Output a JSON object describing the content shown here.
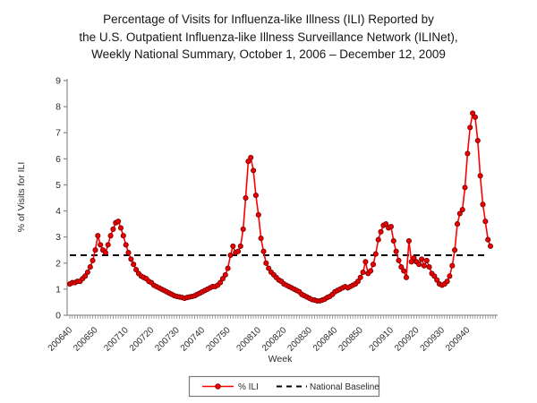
{
  "title": {
    "line1": "Percentage of Visits for Influenza-like Illness (ILI) Reported by",
    "line2": "the U.S. Outpatient Influenza-like Illness Surveillance Network (ILINet),",
    "line3": "Weekly National Summary, October 1, 2006 – December 12, 2009"
  },
  "legend": {
    "ili_label": "% ILI",
    "baseline_label": "National Baseline"
  },
  "colors": {
    "ili_line": "#ff0000",
    "marker_fill": "#f00000",
    "marker_edge": "#7a0000",
    "baseline_line": "#000000",
    "axis": "#8c8c8c",
    "text": "#2b2b2b"
  },
  "chart_data": {
    "type": "line",
    "title": "Percentage of Visits for Influenza-like Illness (ILI) Reported by the U.S. Outpatient Influenza-like Illness Surveillance Network (ILINet), Weekly National Summary, October 1, 2006 – December 12, 2009",
    "xlabel": "Week",
    "ylabel": "% of Visits for ILI",
    "ylim": [
      0,
      9
    ],
    "yticks": [
      0,
      1,
      2,
      3,
      4,
      5,
      6,
      7,
      8,
      9
    ],
    "grid": false,
    "legend_position": "bottom",
    "x_start": "200640",
    "x_end": "200949",
    "xticks": [
      {
        "index": 0,
        "label": "200640"
      },
      {
        "index": 10,
        "label": "200650"
      },
      {
        "index": 22,
        "label": "200710"
      },
      {
        "index": 32,
        "label": "200720"
      },
      {
        "index": 42,
        "label": "200730"
      },
      {
        "index": 52,
        "label": "200740"
      },
      {
        "index": 62,
        "label": "200750"
      },
      {
        "index": 74,
        "label": "200810"
      },
      {
        "index": 84,
        "label": "200820"
      },
      {
        "index": 94,
        "label": "200830"
      },
      {
        "index": 104,
        "label": "200840"
      },
      {
        "index": 114,
        "label": "200850"
      },
      {
        "index": 126,
        "label": "200910"
      },
      {
        "index": 136,
        "label": "200920"
      },
      {
        "index": 146,
        "label": "200930"
      },
      {
        "index": 156,
        "label": "200940"
      }
    ],
    "series": [
      {
        "name": "% ILI",
        "style": "line-with-markers",
        "values": [
          1.2,
          1.25,
          1.25,
          1.3,
          1.3,
          1.4,
          1.5,
          1.65,
          1.85,
          2.1,
          2.5,
          3.05,
          2.7,
          2.5,
          2.4,
          2.7,
          3.05,
          3.3,
          3.55,
          3.6,
          3.35,
          3.05,
          2.7,
          2.4,
          2.15,
          1.95,
          1.75,
          1.6,
          1.5,
          1.45,
          1.4,
          1.3,
          1.25,
          1.15,
          1.1,
          1.05,
          1.0,
          0.95,
          0.9,
          0.85,
          0.8,
          0.75,
          0.72,
          0.7,
          0.68,
          0.65,
          0.68,
          0.7,
          0.72,
          0.75,
          0.8,
          0.85,
          0.9,
          0.95,
          1.0,
          1.05,
          1.1,
          1.1,
          1.15,
          1.25,
          1.4,
          1.55,
          1.8,
          2.3,
          2.65,
          2.4,
          2.45,
          2.65,
          3.3,
          4.5,
          5.9,
          6.05,
          5.55,
          4.6,
          3.85,
          2.95,
          2.45,
          2.0,
          1.8,
          1.65,
          1.55,
          1.45,
          1.35,
          1.3,
          1.2,
          1.15,
          1.1,
          1.05,
          1.0,
          0.95,
          0.9,
          0.8,
          0.75,
          0.7,
          0.65,
          0.6,
          0.58,
          0.55,
          0.55,
          0.58,
          0.62,
          0.68,
          0.72,
          0.8,
          0.9,
          0.95,
          1.0,
          1.05,
          1.1,
          1.05,
          1.1,
          1.15,
          1.2,
          1.3,
          1.45,
          1.65,
          2.05,
          1.6,
          1.7,
          1.95,
          2.35,
          2.9,
          3.2,
          3.45,
          3.5,
          3.35,
          3.4,
          2.85,
          2.45,
          2.1,
          1.85,
          1.7,
          1.45,
          2.85,
          2.05,
          2.2,
          2.05,
          1.95,
          2.15,
          1.9,
          2.1,
          1.85,
          1.6,
          1.5,
          1.35,
          1.2,
          1.15,
          1.2,
          1.3,
          1.5,
          1.9,
          2.5,
          3.5,
          3.9,
          4.05,
          4.9,
          6.2,
          7.2,
          7.75,
          7.6,
          6.7,
          5.35,
          4.25,
          3.6,
          2.9,
          2.65
        ]
      },
      {
        "name": "National Baseline",
        "style": "dashed-horizontal-line",
        "value": 2.3
      }
    ]
  }
}
